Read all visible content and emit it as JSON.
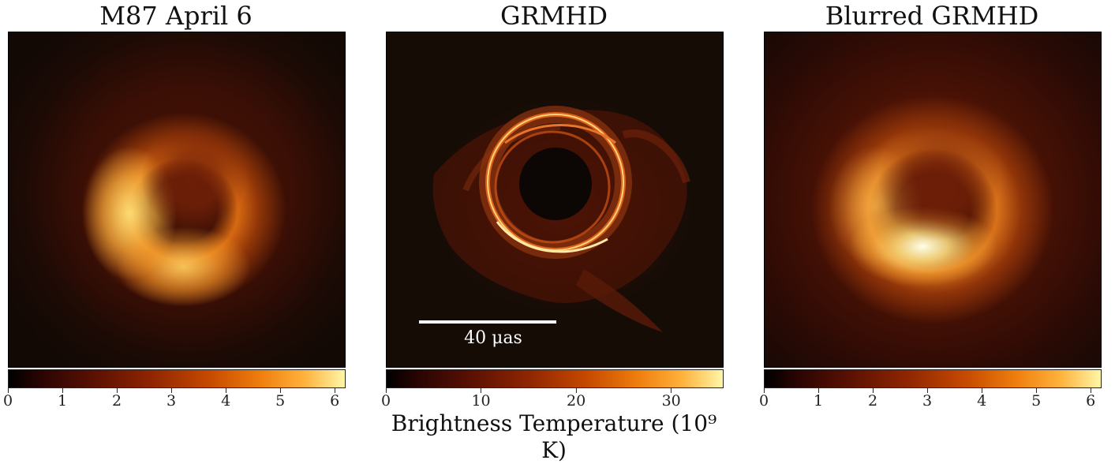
{
  "panels": [
    {
      "title": "M87 April 6",
      "ticks": [
        "0",
        "1",
        "2",
        "3",
        "4",
        "5",
        "6"
      ],
      "tick_max": 6.2
    },
    {
      "title": "GRMHD",
      "ticks": [
        "0",
        "10",
        "20",
        "30"
      ],
      "tick_max": 35.5,
      "scale_label": "40 μas"
    },
    {
      "title": "Blurred GRMHD",
      "ticks": [
        "0",
        "1",
        "2",
        "3",
        "4",
        "5",
        "6"
      ],
      "tick_max": 6.2
    }
  ],
  "colorbar_label": "Brightness Temperature (10⁹ K)",
  "colors": {
    "background": "#150c06",
    "dark": "#3a0d05",
    "mid": "#a33a05",
    "bright": "#ff9a2a",
    "peak": "#fff3b0"
  }
}
